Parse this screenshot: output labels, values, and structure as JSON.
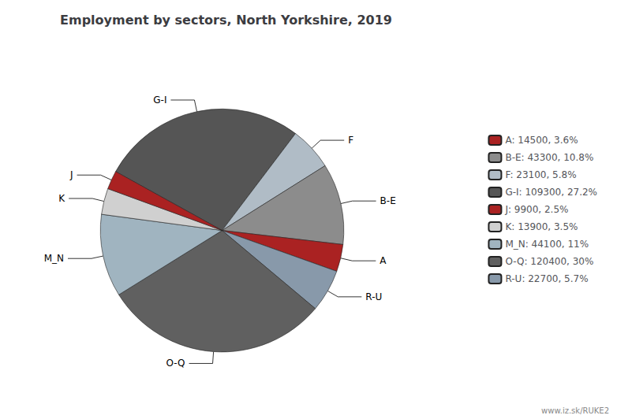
{
  "chart_data": {
    "type": "pie",
    "title": "Employment by sectors, North Yorkshire, 2019",
    "categories": [
      "G-I",
      "F",
      "B-E",
      "A",
      "R-U",
      "O-Q",
      "M_N",
      "K",
      "J"
    ],
    "values": [
      109300,
      23100,
      43300,
      14500,
      22700,
      120400,
      44100,
      13900,
      9900
    ],
    "colors": [
      "#555555",
      "#b0bcc6",
      "#8c8c8c",
      "#aa2222",
      "#8899aa",
      "#606060",
      "#a0b4c0",
      "#d0d0d0",
      "#aa2222"
    ],
    "legend_entries": [
      {
        "category": "A",
        "label": "A: 14500, 3.6%"
      },
      {
        "category": "B-E",
        "label": "B-E: 43300, 10.8%"
      },
      {
        "category": "F",
        "label": "F: 23100, 5.8%"
      },
      {
        "category": "G-I",
        "label": "G-I: 109300, 27.2%"
      },
      {
        "category": "J",
        "label": "J: 9900, 2.5%"
      },
      {
        "category": "K",
        "label": "K: 13900, 3.5%"
      },
      {
        "category": "M_N",
        "label": "M_N: 44100, 11%"
      },
      {
        "category": "O-Q",
        "label": "O-Q: 120400, 30%"
      },
      {
        "category": "R-U",
        "label": "R-U: 22700, 5.7%"
      }
    ],
    "legend": "right",
    "annotation": "www.iz.sk/RUKE2"
  }
}
